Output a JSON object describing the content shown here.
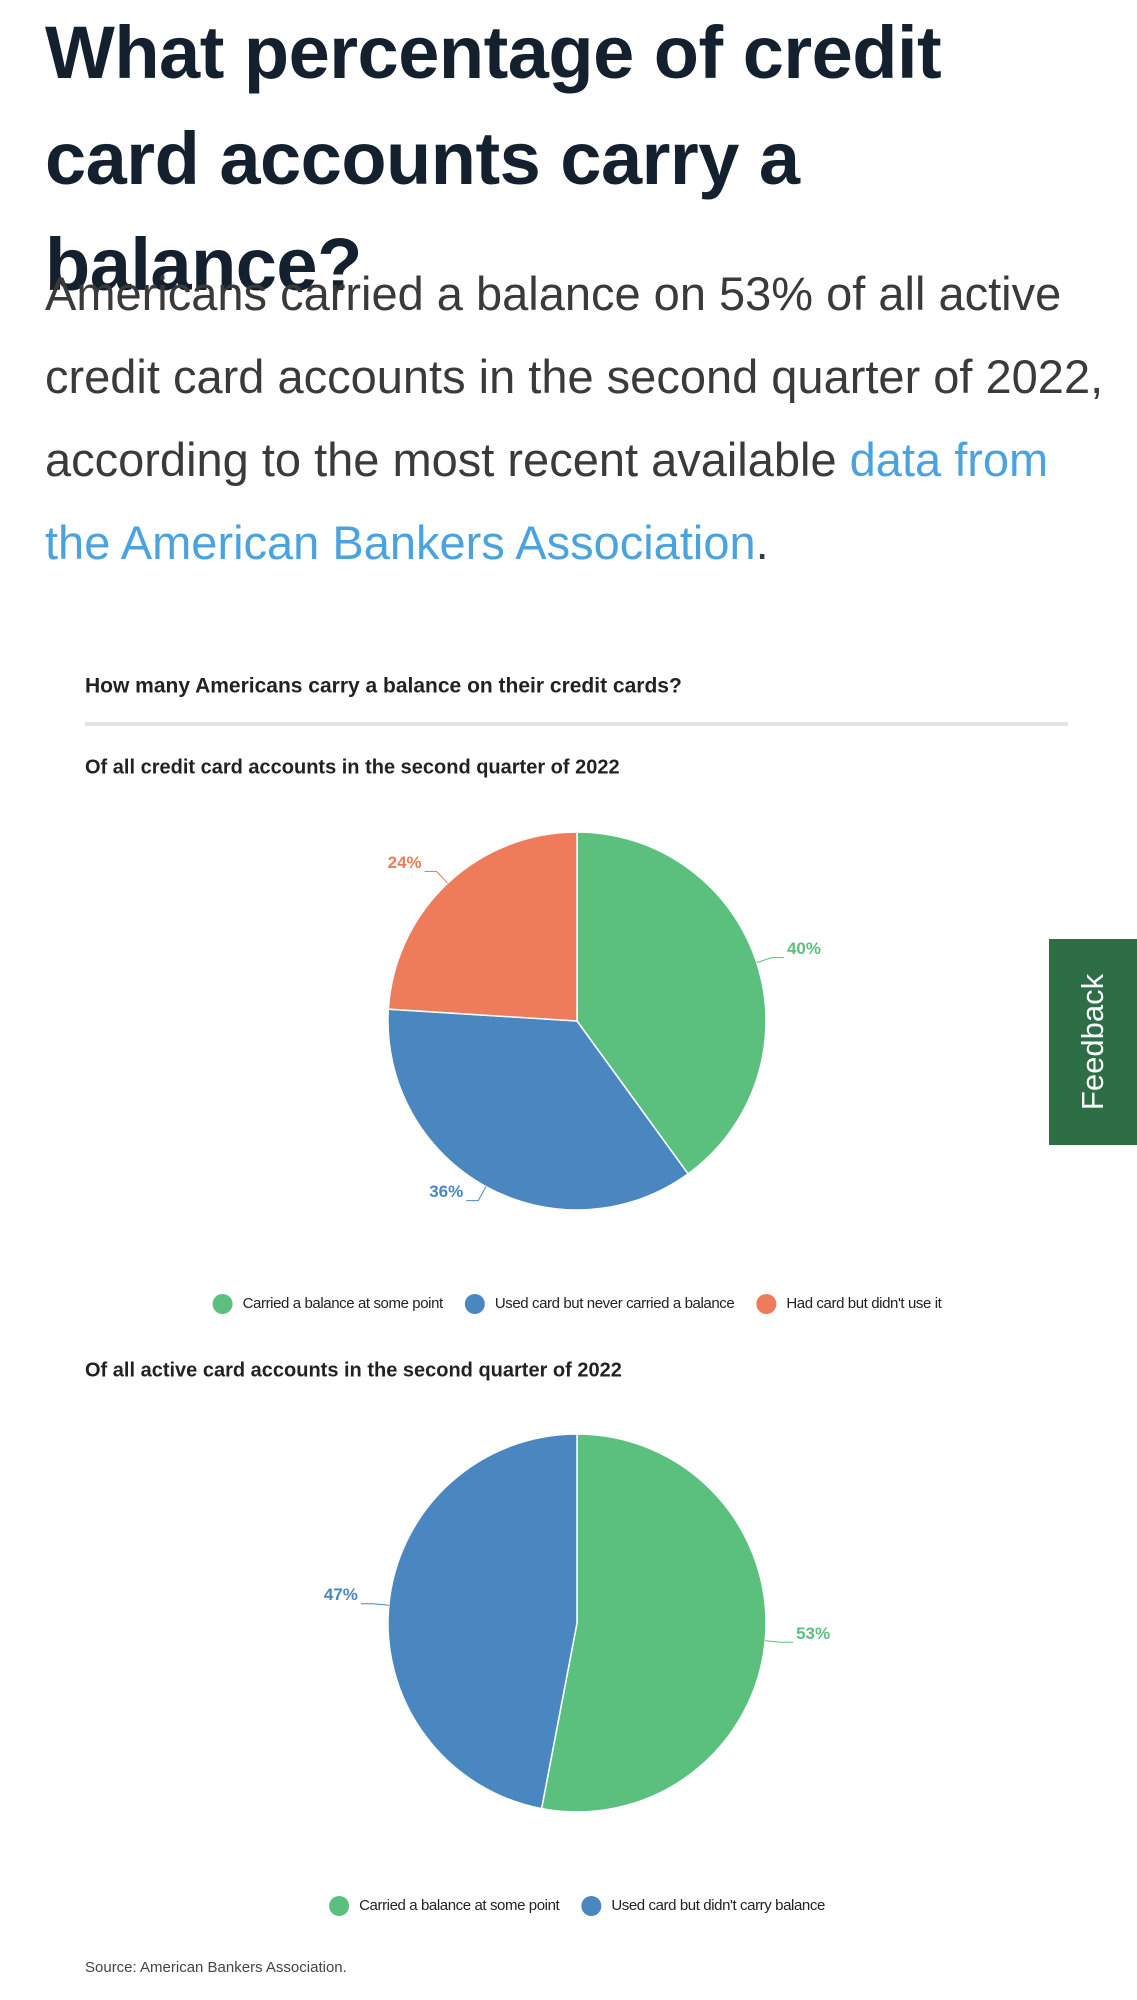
{
  "header": {
    "title": "What percentage of credit card accounts carry a balance?"
  },
  "paragraph": {
    "text_before": "Americans carried a balance on 53% of all active credit card accounts in the second quarter of 2022, according to the most recent available ",
    "link": "data from the American Bankers Association",
    "text_after": "."
  },
  "figure_title": "How many Americans carry a balance on their credit cards?",
  "chart_data": [
    {
      "type": "pie",
      "title": "Of all credit card accounts in the second quarter of 2022",
      "categories": [
        "Carried a balance at some point",
        "Used card but never carried a balance",
        "Had card but didn't use it"
      ],
      "values": [
        40,
        36,
        24
      ],
      "value_labels": [
        "40%",
        "36%",
        "24%"
      ],
      "colors": [
        "#5bbf7d",
        "#4a87c0",
        "#ee7b59"
      ]
    },
    {
      "type": "pie",
      "title": "Of all active card accounts in the second quarter of 2022",
      "categories": [
        "Carried a balance at some point",
        "Used card but didn't carry balance"
      ],
      "values": [
        53,
        47
      ],
      "value_labels": [
        "53%",
        "47%"
      ],
      "colors": [
        "#5bbf7d",
        "#4a87c0"
      ]
    }
  ],
  "source": "Source: American Bankers Association.",
  "feedback_tab": "Feedback"
}
